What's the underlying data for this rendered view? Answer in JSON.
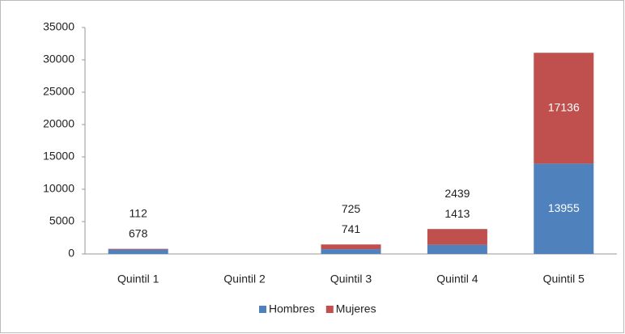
{
  "chart_data": {
    "type": "stacked_bar",
    "categories": [
      "Quintil 1",
      "Quintil 2",
      "Quintil 3",
      "Quintil 4",
      "Quintil 5"
    ],
    "series": [
      {
        "name": "Hombres",
        "color": "#4f81bd",
        "values": [
          678,
          null,
          741,
          1413,
          13955
        ]
      },
      {
        "name": "Mujeres",
        "color": "#c0504d",
        "values": [
          112,
          null,
          725,
          2439,
          17136
        ]
      }
    ],
    "ylim": [
      0,
      35000
    ],
    "yticks": [
      0,
      5000,
      10000,
      15000,
      20000,
      25000,
      30000,
      35000
    ],
    "legend": "bottom"
  }
}
